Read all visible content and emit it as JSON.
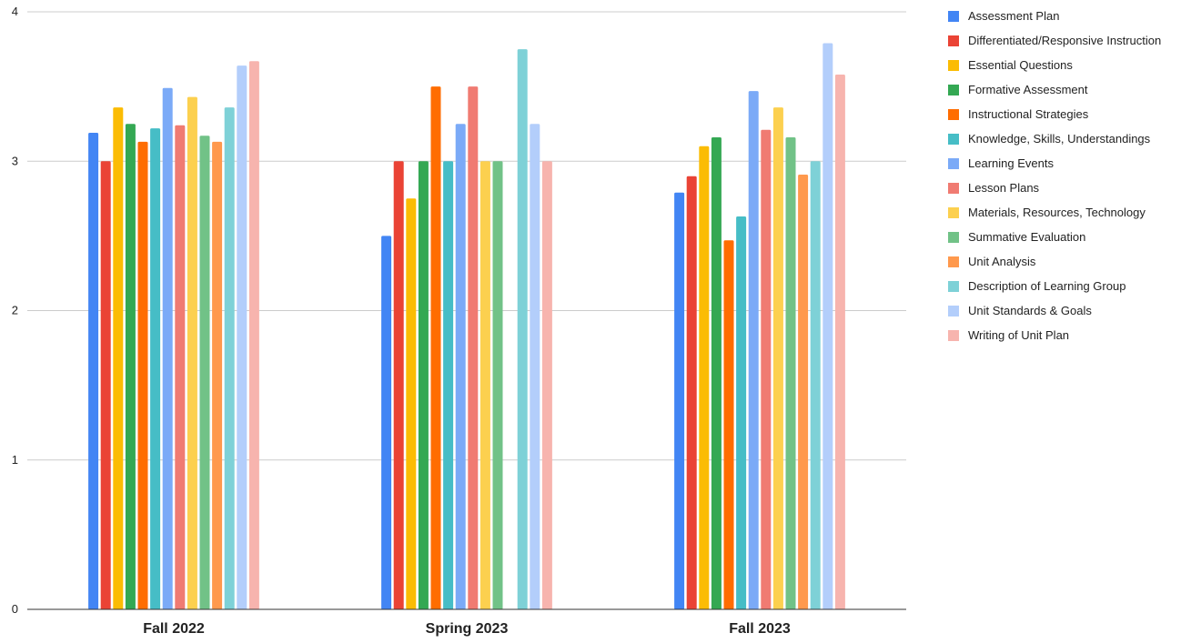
{
  "chart_data": {
    "type": "bar",
    "title": "",
    "xlabel": "",
    "ylabel": "",
    "ylim": [
      0,
      4
    ],
    "yticks": [
      "0",
      "1",
      "2",
      "3",
      "4"
    ],
    "grid": true,
    "legend_position": "right",
    "categories": [
      "Fall 2022",
      "Spring 2023",
      "Fall 2023"
    ],
    "series": [
      {
        "name": "Assessment Plan",
        "color": "#4285f4",
        "values": [
          3.19,
          2.5,
          2.79
        ]
      },
      {
        "name": "Differentiated/Responsive Instruction",
        "color": "#ea4335",
        "values": [
          3.0,
          3.0,
          2.9
        ]
      },
      {
        "name": "Essential Questions",
        "color": "#fbbc04",
        "values": [
          3.36,
          2.75,
          3.1
        ]
      },
      {
        "name": "Formative Assessment",
        "color": "#34a853",
        "values": [
          3.25,
          3.0,
          3.16
        ]
      },
      {
        "name": "Instructional Strategies",
        "color": "#ff6d01",
        "values": [
          3.13,
          3.5,
          2.47
        ]
      },
      {
        "name": "Knowledge, Skills, Understandings",
        "color": "#46bdc6",
        "values": [
          3.22,
          3.0,
          2.63
        ]
      },
      {
        "name": "Learning Events",
        "color": "#7baaf7",
        "values": [
          3.49,
          3.25,
          3.47
        ]
      },
      {
        "name": "Lesson Plans",
        "color": "#f07b72",
        "values": [
          3.24,
          3.5,
          3.21
        ]
      },
      {
        "name": "Materials, Resources, Technology",
        "color": "#fcd04f",
        "values": [
          3.43,
          3.0,
          3.36
        ]
      },
      {
        "name": "Summative Evaluation",
        "color": "#71c287",
        "values": [
          3.17,
          3.0,
          3.16
        ]
      },
      {
        "name": "Unit Analysis",
        "color": "#ff994d",
        "values": [
          3.13,
          0,
          2.91
        ]
      },
      {
        "name": "Description of Learning Group",
        "color": "#7ed1d7",
        "values": [
          3.36,
          3.75,
          3.0
        ]
      },
      {
        "name": "Unit Standards & Goals",
        "color": "#b3cefb",
        "values": [
          3.64,
          3.25,
          3.79
        ]
      },
      {
        "name": "Writing of Unit Plan",
        "color": "#f7b4ae",
        "values": [
          3.67,
          3.0,
          3.58
        ]
      }
    ]
  }
}
